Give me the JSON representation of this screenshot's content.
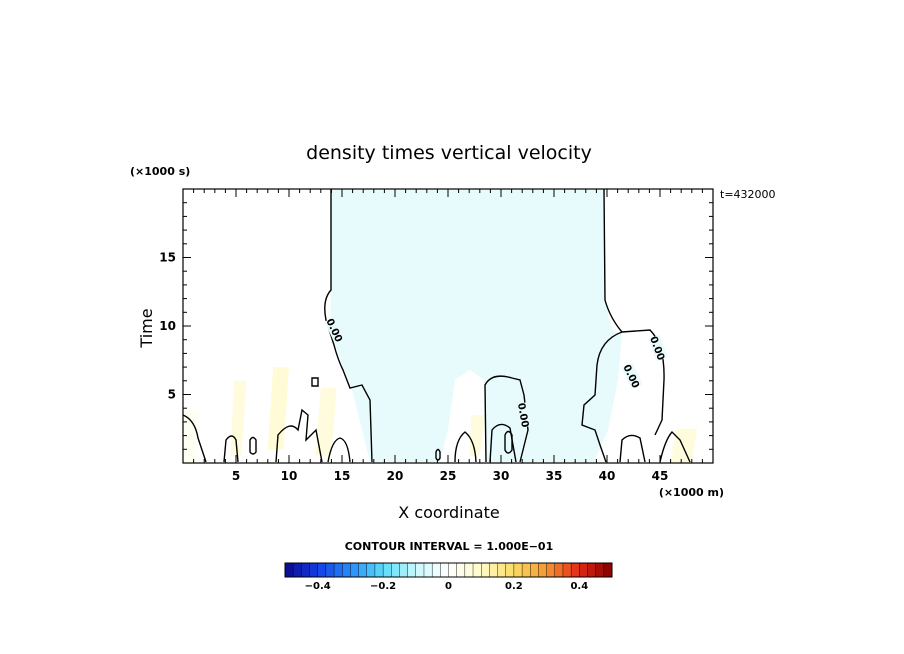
{
  "chart_data": {
    "type": "heatmap",
    "title": "density times vertical velocity",
    "xlabel": "X coordinate",
    "ylabel": "Time",
    "x_unit": "(×1000 m)",
    "y_unit": "(×1000 s)",
    "time_label": "t=432000",
    "xlim": [
      0,
      50
    ],
    "ylim": [
      0,
      20
    ],
    "x_ticks": [
      5,
      10,
      15,
      20,
      25,
      30,
      35,
      40,
      45
    ],
    "y_ticks": [
      5,
      10,
      15
    ],
    "contour_interval_text": "CONTOUR INTERVAL = 1.000E−01",
    "contour_label": "0.00",
    "colorbar": {
      "min": -0.5,
      "max": 0.5,
      "ticks": [
        -0.4,
        -0.2,
        0,
        0.2,
        0.4
      ],
      "tick_labels": [
        "−0.4",
        "−0.2",
        "0",
        "0.2",
        "0.4"
      ],
      "n_levels": 40
    },
    "regions": [
      {
        "x": [
          0,
          1.2,
          1.5,
          0
        ],
        "y": [
          0,
          0,
          3.8,
          3.8
        ],
        "value": 0.02
      },
      {
        "x": [
          4.5,
          5.5,
          6,
          4.8
        ],
        "y": [
          0.5,
          0.5,
          6,
          6
        ],
        "value": 0.05
      },
      {
        "x": [
          8,
          9.5,
          10,
          8.5
        ],
        "y": [
          1,
          1,
          7,
          7
        ],
        "value": 0.06
      },
      {
        "x": [
          12.5,
          14,
          14.5,
          13
        ],
        "y": [
          0.5,
          0.5,
          5.5,
          5.5
        ],
        "value": 0.05
      },
      {
        "x": [
          17.5,
          19,
          19.5,
          18
        ],
        "y": [
          1,
          1,
          7,
          7
        ],
        "value": -0.08
      },
      {
        "x": [
          22,
          23,
          23.5,
          22.2
        ],
        "y": [
          0.5,
          0.5,
          4,
          4
        ],
        "value": -0.06
      },
      {
        "x": [
          27,
          28,
          28.5,
          27.2
        ],
        "y": [
          0.5,
          0.5,
          3.5,
          3.5
        ],
        "value": 0.05
      },
      {
        "x": [
          30,
          31,
          31.5,
          30.2
        ],
        "y": [
          0.5,
          0.5,
          3,
          3
        ],
        "value": 0.06
      },
      {
        "x": [
          34.5,
          35.5,
          36,
          34.7
        ],
        "y": [
          2,
          2,
          6.5,
          6.5
        ],
        "value": 0.04
      },
      {
        "x": [
          46,
          48,
          48.5,
          46.5
        ],
        "y": [
          0,
          0,
          2.5,
          2.5
        ],
        "value": 0.05
      }
    ]
  }
}
